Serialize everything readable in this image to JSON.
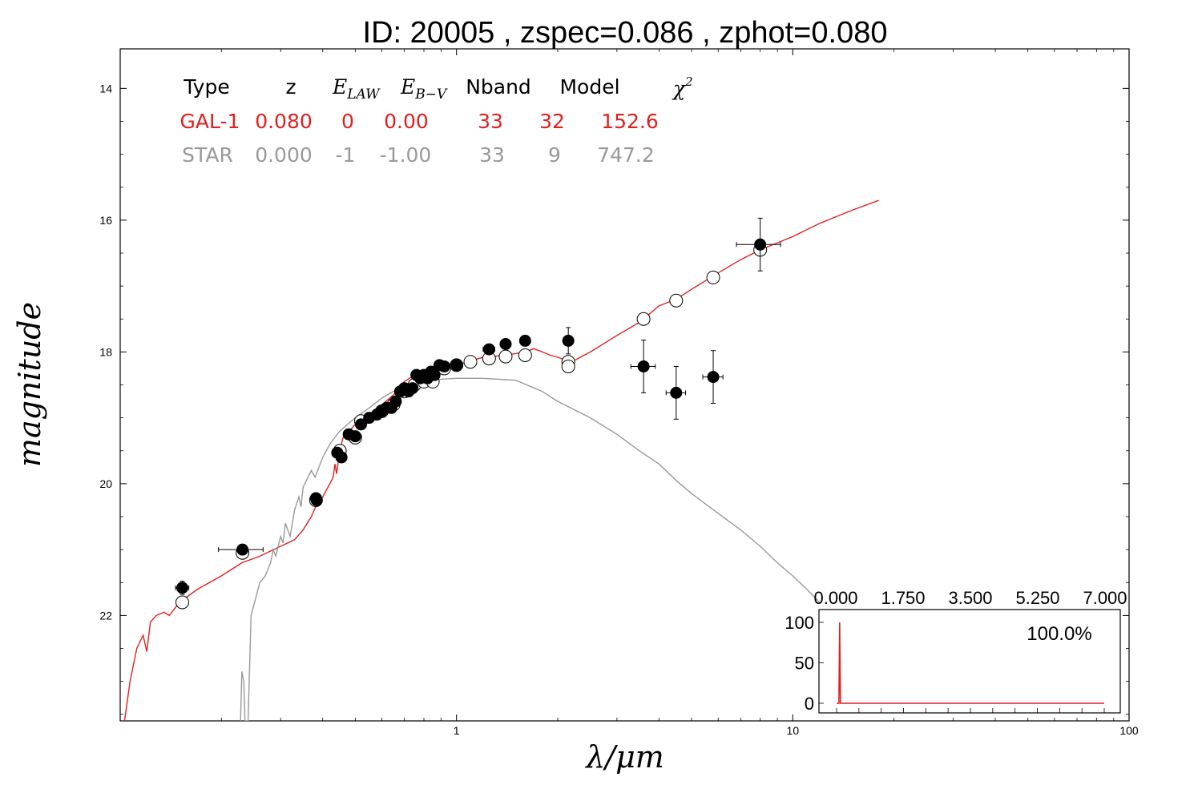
{
  "title": "ID:  20005 , zspec=0.086 , zphot=0.080",
  "colors": {
    "gal": "#e02020",
    "star": "#999999",
    "axis": "#000000"
  },
  "table": {
    "headers": [
      "Type",
      "z",
      "E_LAW",
      "E_B−V",
      "Nband",
      "Model",
      "χ²"
    ],
    "rows": [
      {
        "cells": [
          "GAL-1",
          "0.080",
          "0",
          "0.00",
          "33",
          "32",
          "152.6"
        ],
        "color": "#e02020"
      },
      {
        "cells": [
          "STAR",
          "0.000",
          "-1",
          "-1.00",
          "33",
          "9",
          "747.2"
        ],
        "color": "#999999"
      }
    ]
  },
  "chart_data": [
    {
      "type": "scatter",
      "title": "ID:  20005 , zspec=0.086 , zphot=0.080",
      "xlabel": "λ/μm",
      "ylabel": "magnitude",
      "xscale": "log",
      "xlim": [
        0.1,
        100
      ],
      "ylim": [
        23.6,
        13.4
      ],
      "yinverted": true,
      "xticks": [
        {
          "value": 1,
          "label": "1"
        },
        {
          "value": 10,
          "label": "10"
        },
        {
          "value": 100,
          "label": "100"
        }
      ],
      "yticks": [
        {
          "value": 14,
          "label": "14"
        },
        {
          "value": 16,
          "label": "16"
        },
        {
          "value": 18,
          "label": "18"
        },
        {
          "value": 20,
          "label": "20"
        },
        {
          "value": 22,
          "label": "22"
        }
      ],
      "grid": false,
      "series": [
        {
          "name": "GAL-1",
          "kind": "model-line",
          "color": "#e02020",
          "points": [
            [
              0.103,
              23.6
            ],
            [
              0.107,
              23.0
            ],
            [
              0.112,
              22.5
            ],
            [
              0.117,
              22.3
            ],
            [
              0.12,
              22.55
            ],
            [
              0.123,
              22.1
            ],
            [
              0.128,
              22.0
            ],
            [
              0.135,
              21.95
            ],
            [
              0.14,
              22.0
            ],
            [
              0.15,
              21.8
            ],
            [
              0.17,
              21.6
            ],
            [
              0.2,
              21.4
            ],
            [
              0.23,
              21.2
            ],
            [
              0.26,
              21.1
            ],
            [
              0.3,
              20.95
            ],
            [
              0.33,
              20.85
            ],
            [
              0.35,
              20.7
            ],
            [
              0.37,
              20.5
            ],
            [
              0.385,
              20.3
            ],
            [
              0.4,
              20.2
            ],
            [
              0.42,
              20.0
            ],
            [
              0.43,
              19.9
            ],
            [
              0.435,
              19.7
            ],
            [
              0.44,
              19.85
            ],
            [
              0.45,
              19.5
            ],
            [
              0.46,
              19.3
            ],
            [
              0.48,
              19.2
            ],
            [
              0.5,
              19.1
            ],
            [
              0.55,
              18.95
            ],
            [
              0.6,
              18.8
            ],
            [
              0.65,
              18.65
            ],
            [
              0.7,
              18.45
            ],
            [
              0.75,
              18.35
            ],
            [
              0.8,
              18.3
            ],
            [
              0.9,
              18.25
            ],
            [
              1.0,
              18.2
            ],
            [
              1.2,
              18.08
            ],
            [
              1.4,
              18.05
            ],
            [
              1.6,
              18.0
            ],
            [
              1.7,
              17.95
            ],
            [
              1.8,
              18.0
            ],
            [
              1.9,
              18.05
            ],
            [
              2.0,
              18.08
            ],
            [
              2.1,
              18.12
            ],
            [
              2.2,
              18.15
            ],
            [
              2.5,
              18.0
            ],
            [
              3.0,
              17.75
            ],
            [
              3.5,
              17.55
            ],
            [
              4.0,
              17.3
            ],
            [
              4.5,
              17.2
            ],
            [
              5.0,
              17.05
            ],
            [
              6.0,
              16.8
            ],
            [
              7.0,
              16.6
            ],
            [
              8.0,
              16.45
            ],
            [
              10.0,
              16.25
            ],
            [
              12.0,
              16.05
            ],
            [
              15.0,
              15.85
            ],
            [
              18.0,
              15.7
            ]
          ]
        },
        {
          "name": "STAR",
          "kind": "model-line",
          "color": "#999999",
          "points": [
            [
              0.228,
              23.6
            ],
            [
              0.23,
              22.85
            ],
            [
              0.233,
              23.0
            ],
            [
              0.235,
              23.6
            ],
            [
              0.24,
              23.6
            ],
            [
              0.245,
              22.0
            ],
            [
              0.26,
              21.5
            ],
            [
              0.27,
              21.4
            ],
            [
              0.28,
              21.2
            ],
            [
              0.285,
              21.0
            ],
            [
              0.29,
              21.1
            ],
            [
              0.3,
              20.8
            ],
            [
              0.305,
              20.9
            ],
            [
              0.31,
              20.6
            ],
            [
              0.32,
              20.8
            ],
            [
              0.33,
              20.4
            ],
            [
              0.34,
              20.2
            ],
            [
              0.345,
              20.35
            ],
            [
              0.35,
              20.05
            ],
            [
              0.37,
              19.8
            ],
            [
              0.38,
              19.9
            ],
            [
              0.4,
              19.6
            ],
            [
              0.42,
              19.4
            ],
            [
              0.45,
              19.2
            ],
            [
              0.5,
              19.0
            ],
            [
              0.55,
              18.85
            ],
            [
              0.6,
              18.7
            ],
            [
              0.7,
              18.5
            ],
            [
              0.8,
              18.43
            ],
            [
              1.0,
              18.4
            ],
            [
              1.2,
              18.4
            ],
            [
              1.5,
              18.43
            ],
            [
              1.8,
              18.6
            ],
            [
              2.0,
              18.75
            ],
            [
              2.5,
              19.0
            ],
            [
              3.0,
              19.25
            ],
            [
              3.5,
              19.5
            ],
            [
              4.0,
              19.7
            ],
            [
              4.5,
              19.95
            ],
            [
              5.0,
              20.15
            ],
            [
              6.0,
              20.45
            ],
            [
              7.0,
              20.7
            ],
            [
              8.0,
              20.95
            ],
            [
              9.0,
              21.2
            ],
            [
              10.0,
              21.4
            ],
            [
              11.0,
              21.6
            ],
            [
              12.0,
              21.8
            ]
          ]
        },
        {
          "name": "observed",
          "kind": "observed",
          "marker": "filled-circle",
          "points": [
            [
              0.153,
              21.58,
              0.007,
              0.1
            ],
            [
              0.231,
              21.0,
              0.035,
              0.06
            ],
            [
              0.382,
              20.22,
              0.012,
              0.08
            ],
            [
              0.384,
              20.25,
              0.012,
              0.08
            ],
            [
              0.442,
              19.53,
              0.012,
              0.06
            ],
            [
              0.455,
              19.6,
              0.012,
              0.06
            ],
            [
              0.478,
              19.25,
              0.012,
              0.06
            ],
            [
              0.5,
              19.28,
              0.012,
              0.06
            ],
            [
              0.52,
              19.1,
              0.012,
              0.06
            ],
            [
              0.55,
              19.0,
              0.012,
              0.06
            ],
            [
              0.58,
              18.95,
              0.012,
              0.06
            ],
            [
              0.6,
              18.9,
              0.012,
              0.06
            ],
            [
              0.62,
              18.85,
              0.012,
              0.06
            ],
            [
              0.64,
              18.85,
              0.012,
              0.06
            ],
            [
              0.66,
              18.75,
              0.012,
              0.06
            ],
            [
              0.68,
              18.6,
              0.012,
              0.06
            ],
            [
              0.7,
              18.55,
              0.012,
              0.06
            ],
            [
              0.72,
              18.6,
              0.012,
              0.06
            ],
            [
              0.74,
              18.55,
              0.012,
              0.06
            ],
            [
              0.76,
              18.35,
              0.012,
              0.06
            ],
            [
              0.78,
              18.4,
              0.012,
              0.06
            ],
            [
              0.8,
              18.35,
              0.012,
              0.06
            ],
            [
              0.82,
              18.4,
              0.012,
              0.06
            ],
            [
              0.84,
              18.3,
              0.012,
              0.06
            ],
            [
              0.86,
              18.35,
              0.012,
              0.06
            ],
            [
              0.89,
              18.2,
              0.012,
              0.06
            ],
            [
              0.92,
              18.22,
              0.012,
              0.06
            ],
            [
              1.0,
              18.2,
              0.012,
              0.06
            ],
            [
              1.25,
              17.96,
              0.05,
              0.06
            ],
            [
              1.4,
              17.88,
              0.05,
              0.06
            ],
            [
              1.6,
              17.83,
              0.05,
              0.06
            ],
            [
              2.15,
              17.83,
              0.05,
              0.2
            ],
            [
              3.6,
              18.22,
              0.3,
              0.4
            ],
            [
              4.5,
              18.62,
              0.3,
              0.4
            ],
            [
              5.8,
              18.38,
              0.4,
              0.4
            ],
            [
              8.0,
              16.37,
              1.2,
              0.4
            ]
          ]
        },
        {
          "name": "model-predicted",
          "kind": "predicted",
          "marker": "open-circle",
          "points": [
            [
              0.153,
              21.8
            ],
            [
              0.231,
              21.05
            ],
            [
              0.382,
              20.25
            ],
            [
              0.45,
              19.5
            ],
            [
              0.5,
              19.3
            ],
            [
              0.52,
              19.05
            ],
            [
              0.6,
              18.9
            ],
            [
              0.65,
              18.8
            ],
            [
              0.7,
              18.6
            ],
            [
              0.75,
              18.5
            ],
            [
              0.8,
              18.45
            ],
            [
              0.85,
              18.45
            ],
            [
              0.92,
              18.25
            ],
            [
              1.0,
              18.2
            ],
            [
              1.1,
              18.15
            ],
            [
              1.25,
              18.1
            ],
            [
              1.4,
              18.07
            ],
            [
              1.6,
              18.05
            ],
            [
              2.15,
              18.15
            ],
            [
              2.15,
              18.22
            ],
            [
              3.6,
              17.5
            ],
            [
              4.5,
              17.22
            ],
            [
              5.8,
              16.87
            ],
            [
              8.0,
              16.45
            ]
          ]
        }
      ]
    },
    {
      "type": "line",
      "name": "inset-pdf",
      "percent_label": "100.0%",
      "xlim": [
        0.0,
        7.0
      ],
      "ylim": [
        -10,
        110
      ],
      "xticks": [
        "0.000",
        "1.750",
        "3.500",
        "5.250",
        "7.000"
      ],
      "yticks": [
        "0",
        "50",
        "100"
      ],
      "color": "#e02020",
      "points": [
        [
          0.0,
          0
        ],
        [
          0.06,
          0
        ],
        [
          0.08,
          100
        ],
        [
          0.1,
          0
        ],
        [
          7.0,
          0
        ]
      ]
    }
  ]
}
